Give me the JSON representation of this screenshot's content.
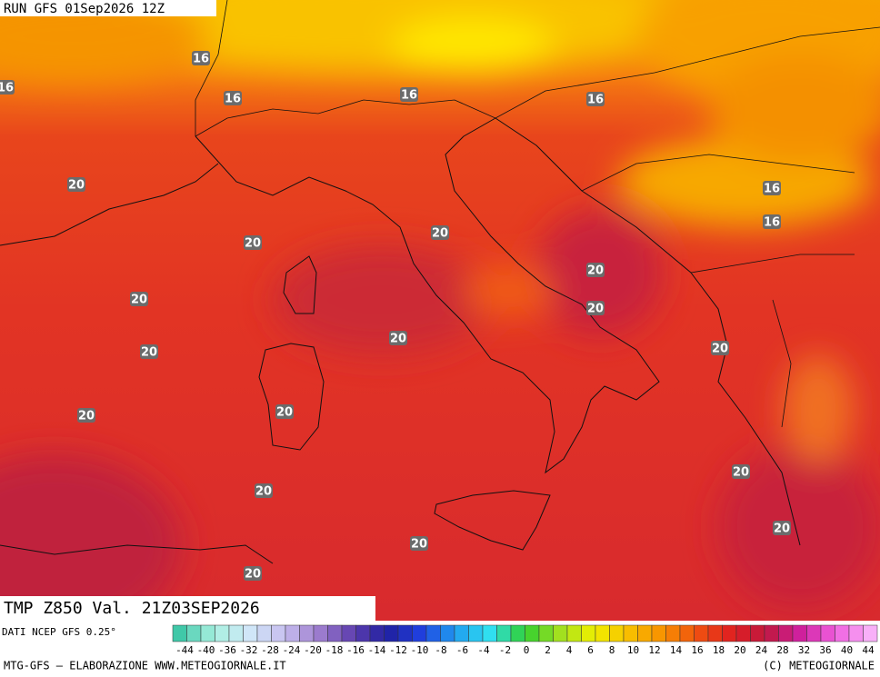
{
  "header": {
    "run": "RUN GFS 01Sep2026 12Z"
  },
  "map": {
    "contour_labels": [
      "16",
      "16",
      "16",
      "16",
      "16",
      "16",
      "16",
      "20",
      "20",
      "20",
      "20",
      "20",
      "20",
      "20",
      "20",
      "20",
      "20",
      "20",
      "20",
      "20",
      "20",
      "20",
      "20"
    ]
  },
  "caption": {
    "field": "TMP Z850 Val. 21Z03SEP2026",
    "source": "DATI NCEP GFS 0.25°"
  },
  "scale": {
    "labels": [
      "-44",
      "-40",
      "-36",
      "-32",
      "-28",
      "-24",
      "-20",
      "-18",
      "-16",
      "-14",
      "-12",
      "-10",
      "-8",
      "-6",
      "-4",
      "-2",
      "0",
      "2",
      "4",
      "6",
      "8",
      "10",
      "12",
      "14",
      "16",
      "18",
      "20",
      "24",
      "28",
      "32",
      "36",
      "40",
      "44"
    ]
  },
  "footer": {
    "left": "MTG-GFS — ELABORAZIONE WWW.METEOGIORNALE.IT",
    "right": "(C) METEOGIORNALE"
  }
}
